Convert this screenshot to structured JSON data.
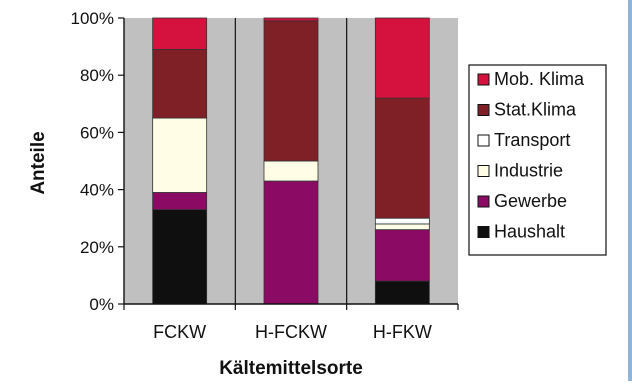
{
  "chart_data": {
    "type": "bar",
    "stacked": true,
    "categories": [
      "FCKW",
      "H-FCKW",
      "H-FKW"
    ],
    "series": [
      {
        "name": "Haushalt",
        "values": [
          33,
          0,
          8
        ],
        "color": "#0f0f0f"
      },
      {
        "name": "Gewerbe",
        "values": [
          6,
          43,
          18
        ],
        "color": "#8b0a64"
      },
      {
        "name": "Industrie",
        "values": [
          26,
          7,
          2
        ],
        "color": "#fffde6"
      },
      {
        "name": "Transport",
        "values": [
          0,
          0,
          2
        ],
        "color": "#ffffff"
      },
      {
        "name": "Stat.Klima",
        "values": [
          24,
          49,
          42
        ],
        "color": "#7f2027"
      },
      {
        "name": "Mob. Klima",
        "values": [
          11,
          1,
          28
        ],
        "color": "#d5123d"
      }
    ],
    "title": "",
    "xlabel": "Kältemittelsorte",
    "ylabel": "Anteile",
    "ylim": [
      0,
      100
    ],
    "yticks": [
      "0%",
      "20%",
      "40%",
      "60%",
      "80%",
      "100%"
    ],
    "grid": true,
    "plot_background": "#c0c0c0",
    "legend_position": "right"
  }
}
